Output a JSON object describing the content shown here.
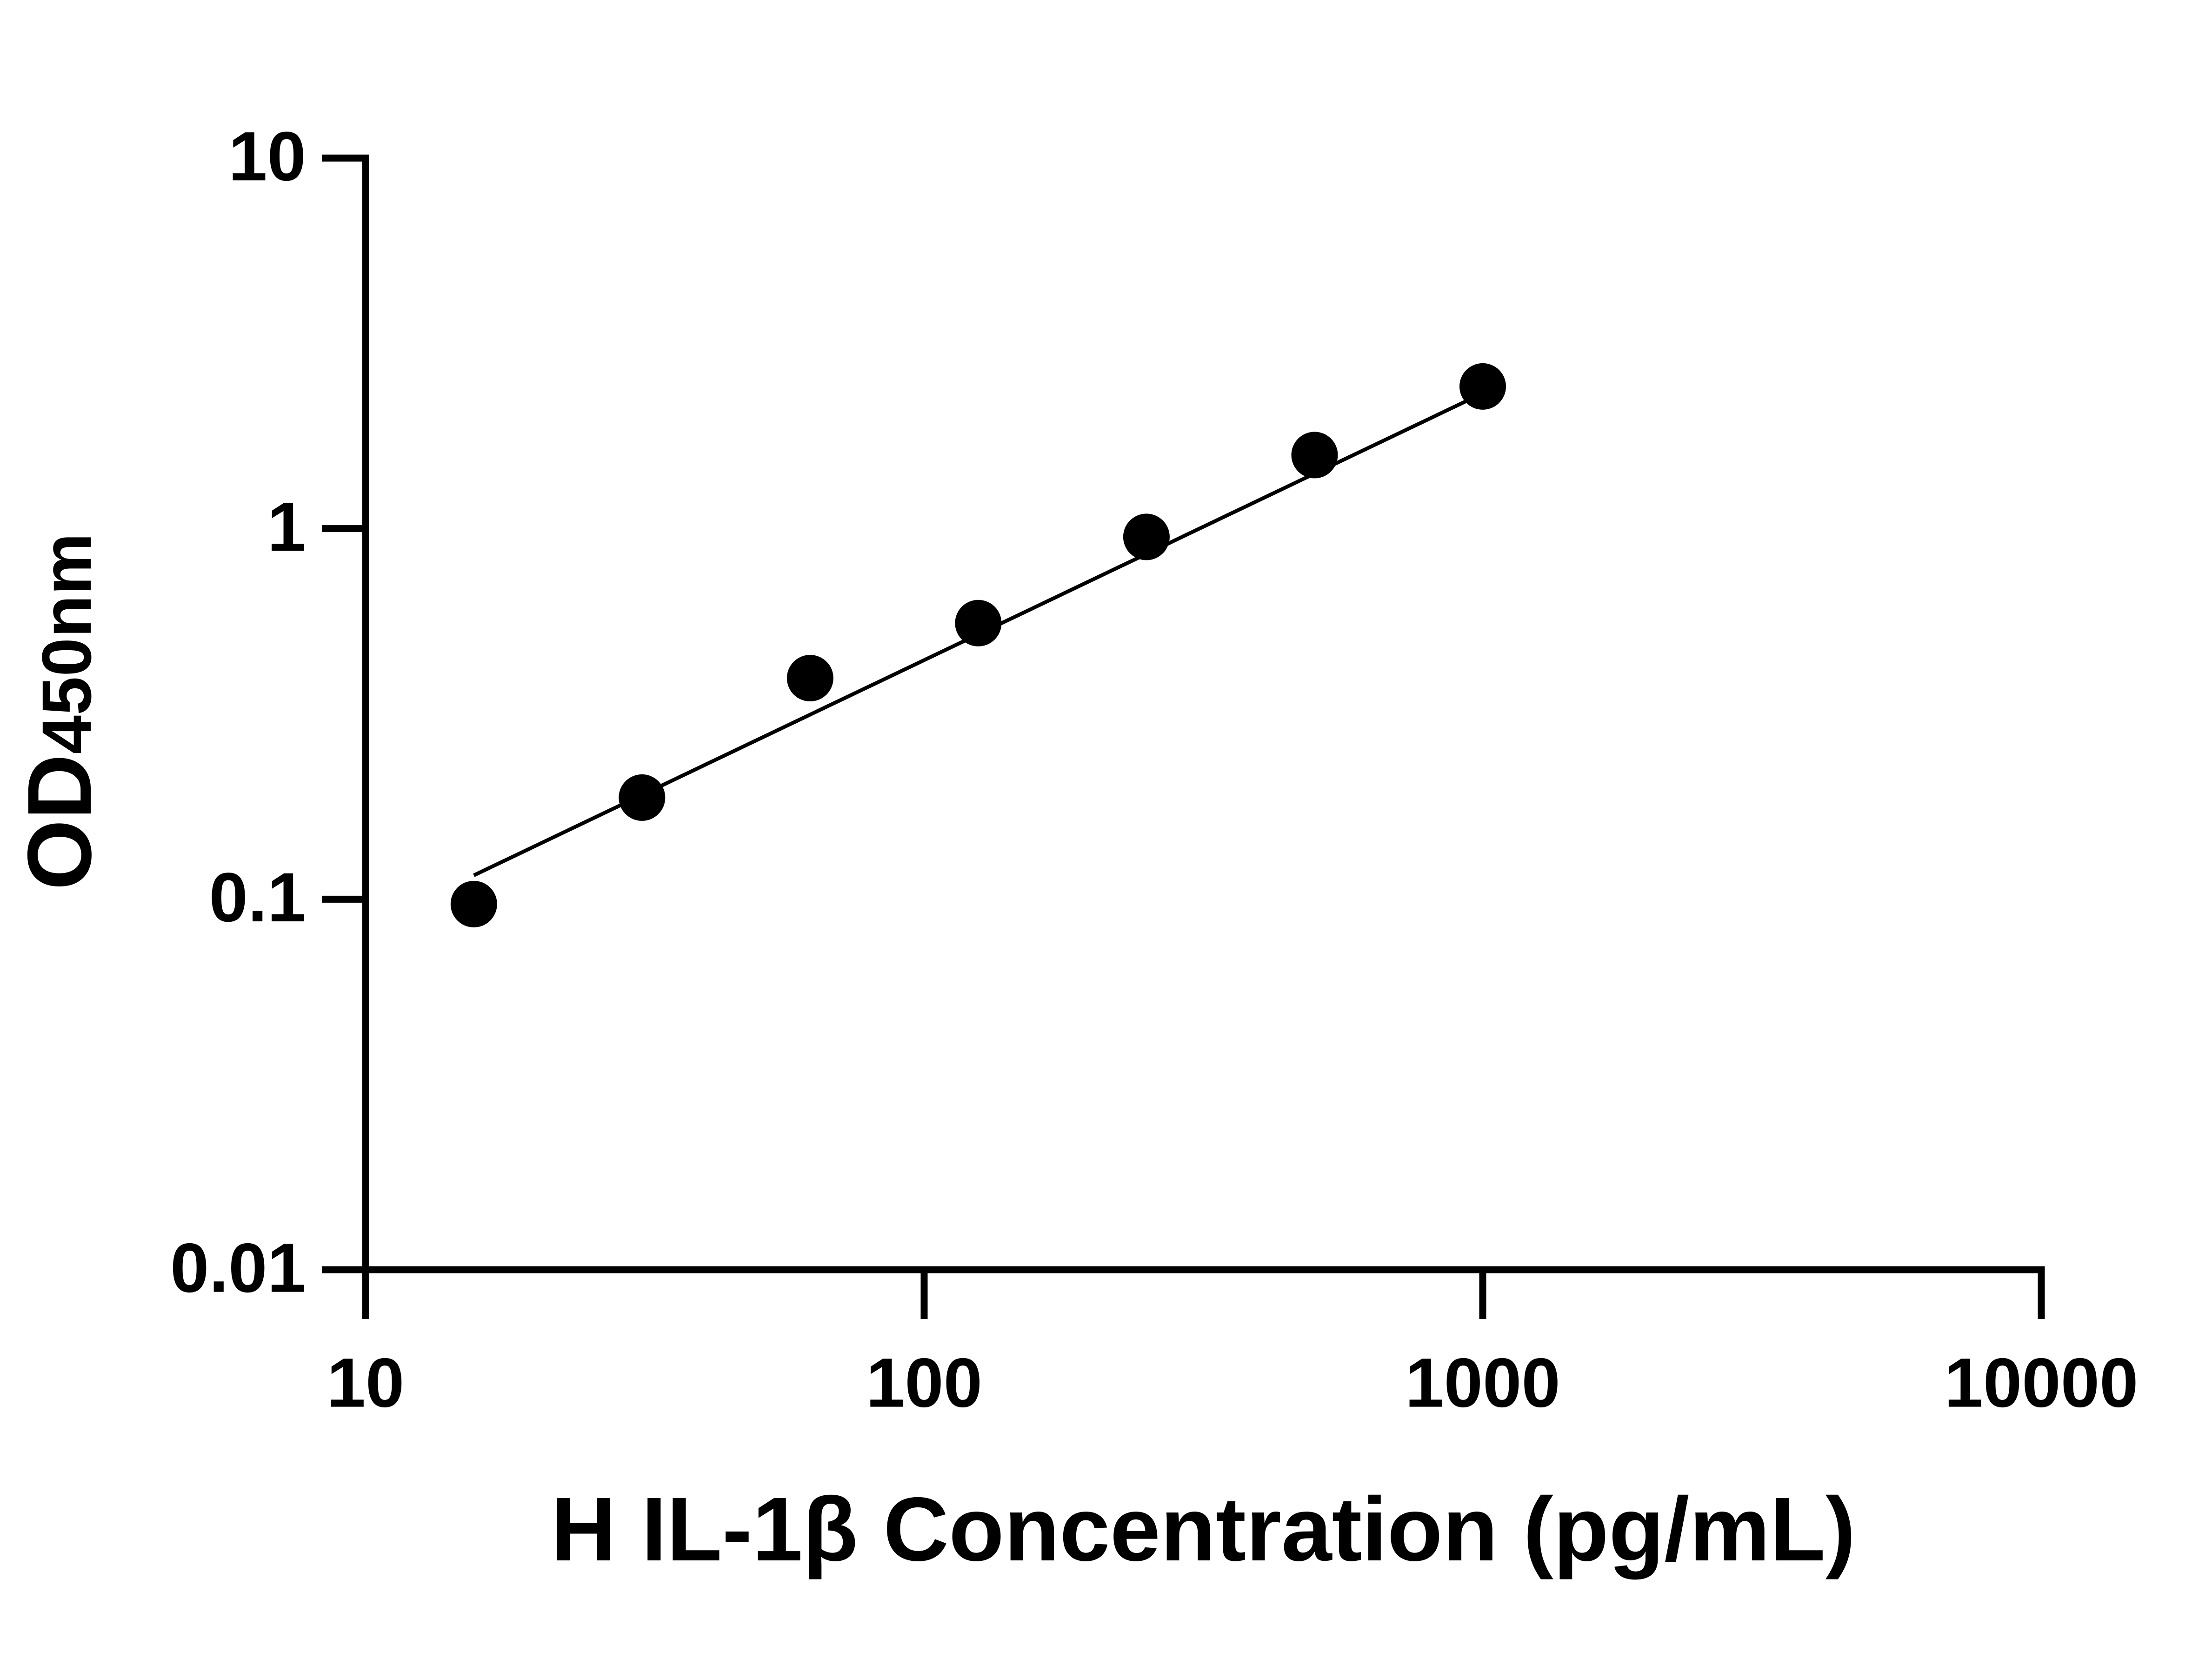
{
  "chart_data": {
    "type": "scatter",
    "xlabel": "H IL-1β Concentration (pg/mL)",
    "ylabel": "OD",
    "ylabel_subscript": "450nm",
    "xscale": "log",
    "yscale": "log",
    "xlim": [
      10,
      10000
    ],
    "ylim": [
      0.01,
      10
    ],
    "xticks": [
      10,
      100,
      1000,
      10000
    ],
    "yticks": [
      0.01,
      0.1,
      1,
      10
    ],
    "grid": false,
    "series": [
      {
        "style": "markers",
        "color": "#000000",
        "x": [
          15.625,
          31.25,
          62.5,
          125,
          250,
          500,
          1000
        ],
        "values": [
          0.097,
          0.188,
          0.395,
          0.556,
          0.95,
          1.58,
          2.42
        ]
      },
      {
        "style": "line",
        "color": "#000000",
        "x": [
          15.625,
          1000
        ],
        "values": [
          0.116,
          2.32
        ]
      }
    ]
  }
}
